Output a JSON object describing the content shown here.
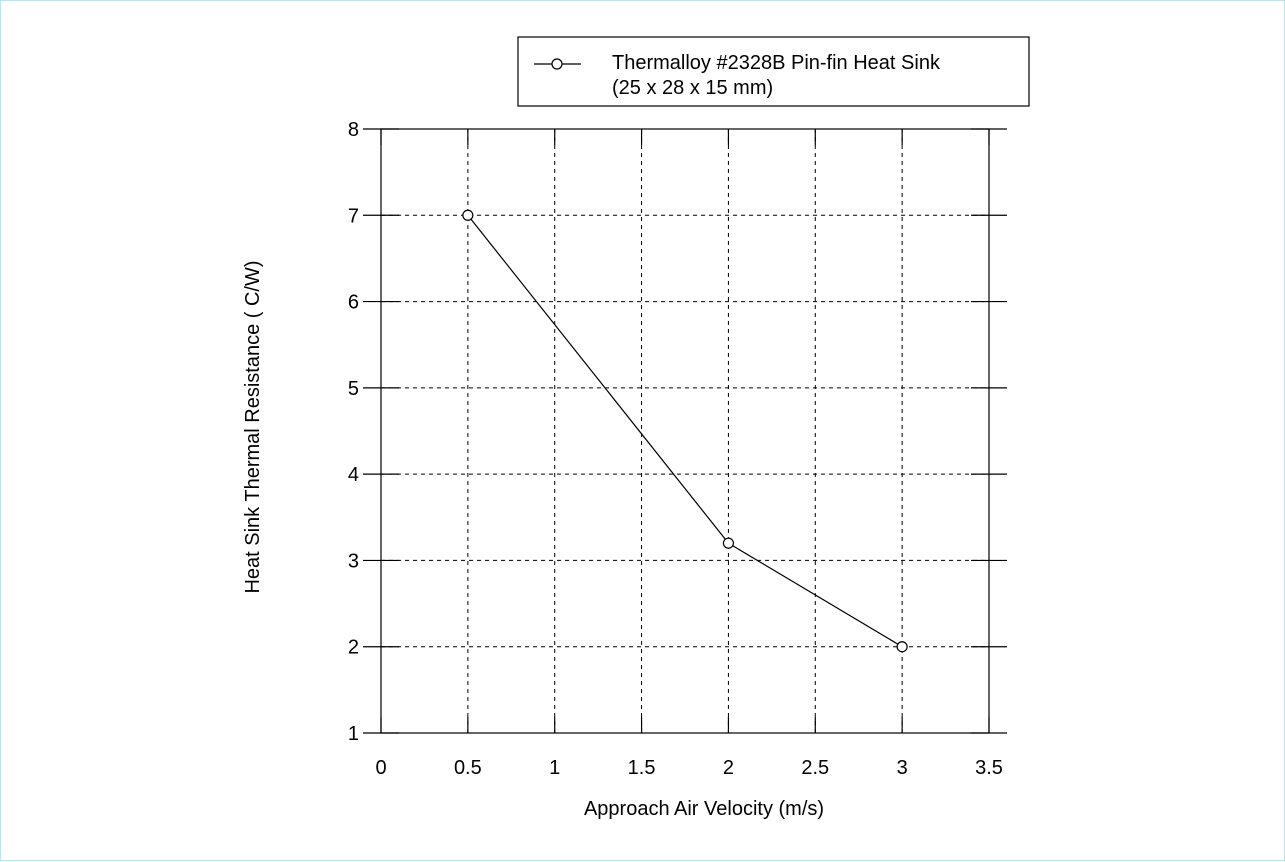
{
  "chart_data": {
    "type": "line",
    "title": "",
    "xlabel": "Approach Air Velocity (m/s)",
    "ylabel": "Heat Sink Thermal Resistance (  C/W)",
    "xlim": [
      0,
      3.5
    ],
    "ylim": [
      1,
      8
    ],
    "xticks": [
      "0",
      "0.5",
      "1",
      "1.5",
      "2",
      "2.5",
      "3",
      "3.5"
    ],
    "yticks": [
      "1",
      "2",
      "3",
      "4",
      "5",
      "6",
      "7",
      "8"
    ],
    "grid": true,
    "legend_position": "top-right",
    "series": [
      {
        "name_line1": "Thermalloy #2328B Pin-fin Heat Sink",
        "name_line2": "(25 x 28 x 15 mm)",
        "marker": "open-circle",
        "color": "#000000",
        "x": [
          0.5,
          2.0,
          3.0
        ],
        "y": [
          7.0,
          3.2,
          2.0
        ]
      }
    ]
  }
}
